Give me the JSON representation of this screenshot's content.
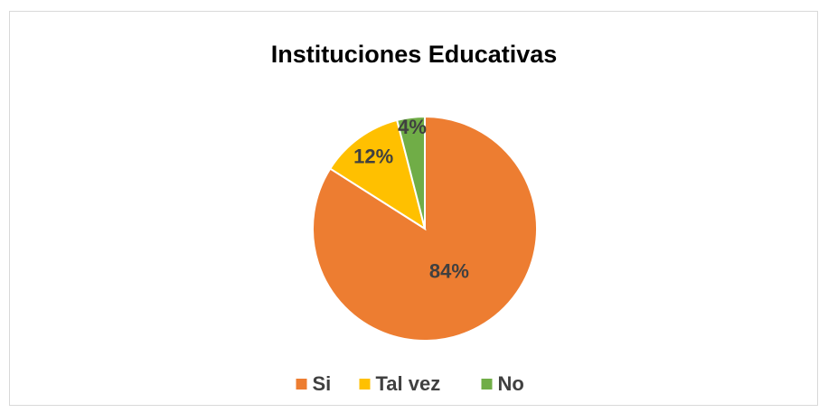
{
  "chart_data": {
    "type": "pie",
    "title": "Instituciones Educativas",
    "categories": [
      "Si",
      "Tal vez",
      "No"
    ],
    "values": [
      84,
      12,
      4
    ],
    "value_labels": [
      "84%",
      "12%",
      "4%"
    ],
    "colors": [
      "#ED7D31",
      "#FFC000",
      "#70AD47"
    ],
    "legend": "bottom"
  }
}
